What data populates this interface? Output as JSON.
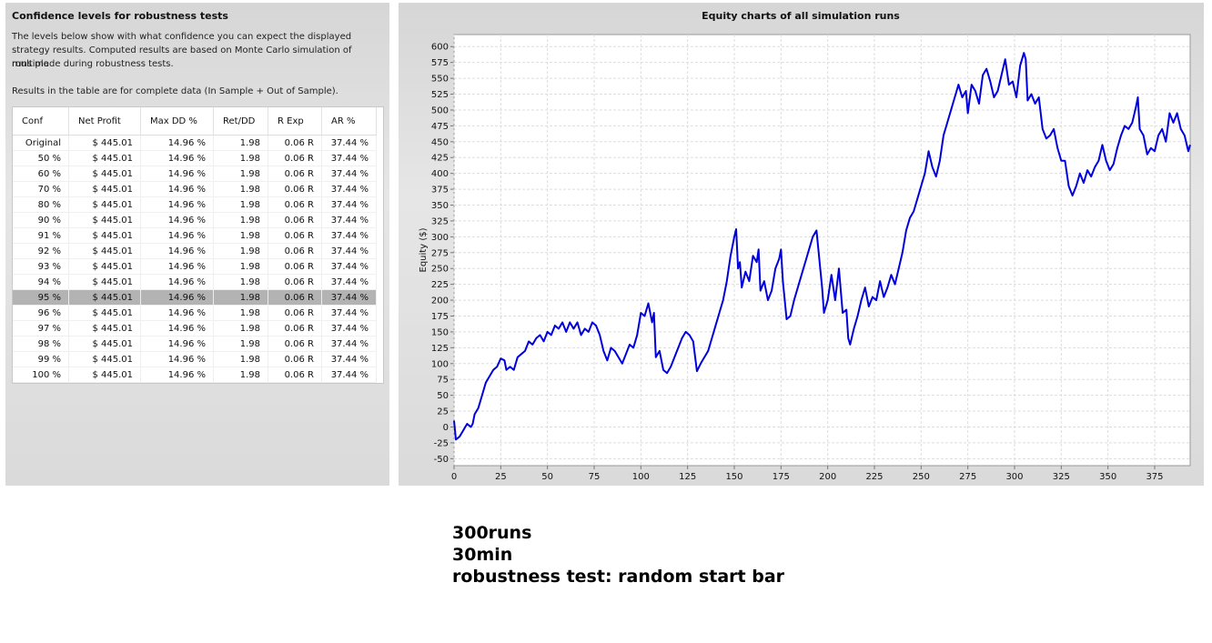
{
  "left_panel": {
    "title": "Confidence levels for robustness tests",
    "description": [
      "The levels below show with what confidence you can expect the displayed",
      "strategy results. Computed results are based on Monte Carlo simulation of multiple",
      "runs made during robustness tests."
    ],
    "note": "Results in the table are for complete data (In Sample + Out of Sample)."
  },
  "table": {
    "columns": [
      "Conf",
      "Net Profit",
      "Max DD %",
      "Ret/DD",
      "R Exp",
      "AR %"
    ],
    "selected_row": 10,
    "rows": [
      [
        "Original",
        "$ 445.01",
        "14.96 %",
        "1.98",
        "0.06 R",
        "37.44 %"
      ],
      [
        "50 %",
        "$ 445.01",
        "14.96 %",
        "1.98",
        "0.06 R",
        "37.44 %"
      ],
      [
        "60 %",
        "$ 445.01",
        "14.96 %",
        "1.98",
        "0.06 R",
        "37.44 %"
      ],
      [
        "70 %",
        "$ 445.01",
        "14.96 %",
        "1.98",
        "0.06 R",
        "37.44 %"
      ],
      [
        "80 %",
        "$ 445.01",
        "14.96 %",
        "1.98",
        "0.06 R",
        "37.44 %"
      ],
      [
        "90 %",
        "$ 445.01",
        "14.96 %",
        "1.98",
        "0.06 R",
        "37.44 %"
      ],
      [
        "91 %",
        "$ 445.01",
        "14.96 %",
        "1.98",
        "0.06 R",
        "37.44 %"
      ],
      [
        "92 %",
        "$ 445.01",
        "14.96 %",
        "1.98",
        "0.06 R",
        "37.44 %"
      ],
      [
        "93 %",
        "$ 445.01",
        "14.96 %",
        "1.98",
        "0.06 R",
        "37.44 %"
      ],
      [
        "94 %",
        "$ 445.01",
        "14.96 %",
        "1.98",
        "0.06 R",
        "37.44 %"
      ],
      [
        "95 %",
        "$ 445.01",
        "14.96 %",
        "1.98",
        "0.06 R",
        "37.44 %"
      ],
      [
        "96 %",
        "$ 445.01",
        "14.96 %",
        "1.98",
        "0.06 R",
        "37.44 %"
      ],
      [
        "97 %",
        "$ 445.01",
        "14.96 %",
        "1.98",
        "0.06 R",
        "37.44 %"
      ],
      [
        "98 %",
        "$ 445.01",
        "14.96 %",
        "1.98",
        "0.06 R",
        "37.44 %"
      ],
      [
        "99 %",
        "$ 445.01",
        "14.96 %",
        "1.98",
        "0.06 R",
        "37.44 %"
      ],
      [
        "100 %",
        "$ 445.01",
        "14.96 %",
        "1.98",
        "0.06 R",
        "37.44 %"
      ]
    ]
  },
  "chart_data": {
    "type": "line",
    "title": "Equity charts of all simulation runs",
    "y_label": "Equity ($)",
    "color": "#0000dd",
    "grid": true,
    "xlim": [
      0,
      394
    ],
    "xticks": [
      0,
      25,
      50,
      75,
      100,
      125,
      150,
      175,
      200,
      225,
      250,
      275,
      300,
      325,
      350,
      375
    ],
    "ylim": [
      -61,
      619
    ],
    "yticks": [
      -50,
      -25,
      0,
      25,
      50,
      75,
      100,
      125,
      150,
      175,
      200,
      225,
      250,
      275,
      300,
      325,
      350,
      375,
      400,
      425,
      450,
      475,
      500,
      525,
      550,
      575,
      600
    ],
    "x": [
      0,
      1,
      3,
      5,
      7,
      9,
      10,
      11,
      13,
      15,
      17,
      19,
      21,
      23,
      25,
      27,
      28,
      30,
      32,
      34,
      36,
      38,
      40,
      42,
      44,
      46,
      48,
      50,
      52,
      54,
      56,
      58,
      60,
      62,
      64,
      66,
      68,
      70,
      72,
      74,
      76,
      78,
      80,
      82,
      84,
      86,
      88,
      90,
      92,
      94,
      96,
      98,
      100,
      102,
      104,
      106,
      107,
      108,
      110,
      112,
      114,
      116,
      118,
      120,
      122,
      124,
      126,
      128,
      130,
      132,
      134,
      136,
      138,
      140,
      142,
      144,
      146,
      148,
      150,
      151,
      152,
      153,
      154,
      156,
      158,
      160,
      162,
      163,
      164,
      166,
      168,
      170,
      172,
      174,
      175,
      176,
      178,
      180,
      182,
      184,
      186,
      188,
      190,
      192,
      194,
      196,
      197,
      198,
      200,
      202,
      204,
      206,
      208,
      210,
      211,
      212,
      214,
      216,
      218,
      220,
      222,
      224,
      226,
      228,
      230,
      232,
      234,
      236,
      238,
      240,
      242,
      244,
      246,
      248,
      250,
      252,
      254,
      256,
      258,
      260,
      262,
      264,
      266,
      268,
      270,
      272,
      274,
      275,
      277,
      279,
      281,
      283,
      285,
      287,
      289,
      291,
      293,
      295,
      297,
      299,
      301,
      303,
      305,
      306,
      307,
      309,
      311,
      313,
      315,
      317,
      319,
      321,
      323,
      325,
      327,
      329,
      331,
      333,
      335,
      337,
      339,
      341,
      343,
      345,
      347,
      349,
      351,
      353,
      355,
      357,
      359,
      361,
      363,
      365,
      366,
      367,
      369,
      371,
      373,
      375,
      377,
      379,
      381,
      383,
      385,
      387,
      389,
      391,
      393,
      394
    ],
    "values": [
      10,
      -20,
      -15,
      -5,
      5,
      0,
      5,
      20,
      30,
      50,
      70,
      80,
      90,
      95,
      108,
      105,
      90,
      95,
      90,
      110,
      115,
      120,
      135,
      130,
      140,
      145,
      135,
      150,
      145,
      160,
      155,
      165,
      150,
      165,
      155,
      165,
      145,
      155,
      150,
      165,
      160,
      145,
      120,
      105,
      125,
      120,
      110,
      100,
      115,
      130,
      125,
      145,
      180,
      175,
      195,
      165,
      180,
      110,
      120,
      90,
      85,
      95,
      110,
      125,
      140,
      150,
      145,
      135,
      88,
      100,
      110,
      120,
      140,
      160,
      180,
      200,
      230,
      270,
      300,
      312,
      250,
      260,
      220,
      245,
      230,
      270,
      260,
      280,
      215,
      230,
      200,
      215,
      250,
      265,
      280,
      230,
      170,
      175,
      200,
      220,
      240,
      260,
      280,
      300,
      310,
      250,
      220,
      180,
      200,
      240,
      200,
      250,
      180,
      185,
      140,
      130,
      155,
      175,
      200,
      220,
      190,
      205,
      200,
      230,
      205,
      220,
      240,
      225,
      250,
      275,
      310,
      330,
      340,
      360,
      380,
      400,
      435,
      410,
      395,
      420,
      460,
      480,
      500,
      520,
      540,
      520,
      530,
      495,
      540,
      530,
      510,
      555,
      565,
      545,
      520,
      530,
      555,
      580,
      540,
      545,
      520,
      570,
      590,
      580,
      515,
      525,
      510,
      520,
      470,
      455,
      460,
      470,
      440,
      420,
      420,
      380,
      365,
      380,
      400,
      385,
      405,
      395,
      410,
      420,
      445,
      420,
      405,
      415,
      440,
      460,
      475,
      470,
      480,
      505,
      520,
      470,
      460,
      430,
      440,
      435,
      460,
      470,
      450,
      495,
      480,
      495,
      470,
      460,
      435,
      445
    ]
  },
  "notes": [
    "300runs",
    "30min",
    "robustness test: random start bar"
  ]
}
